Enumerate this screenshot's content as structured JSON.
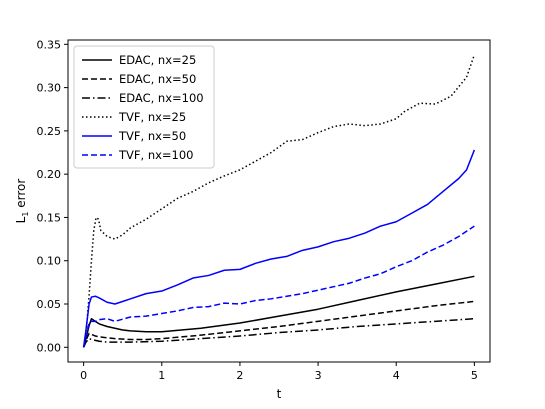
{
  "chart_data": {
    "type": "line",
    "xlabel": "t",
    "ylabel": "L1 error",
    "ylabel_main": "L",
    "ylabel_sub": "1",
    "ylabel_rest": " error",
    "xlim": [
      -0.2,
      5.2
    ],
    "ylim": [
      -0.017,
      0.355
    ],
    "xticks": [
      0,
      1,
      2,
      3,
      4,
      5
    ],
    "yticks": [
      0.0,
      0.05,
      0.1,
      0.15,
      0.2,
      0.25,
      0.3,
      0.35
    ],
    "xtick_labels": [
      "0",
      "1",
      "2",
      "3",
      "4",
      "5"
    ],
    "ytick_labels": [
      "0.00",
      "0.05",
      "0.10",
      "0.15",
      "0.20",
      "0.25",
      "0.30",
      "0.35"
    ],
    "legend_position": "top-left",
    "grid": false,
    "series": [
      {
        "name": "EDAC, nx=25",
        "color": "#000000",
        "dash": "solid",
        "x": [
          0,
          0.03,
          0.07,
          0.1,
          0.15,
          0.2,
          0.3,
          0.4,
          0.5,
          0.6,
          0.8,
          1.0,
          1.5,
          2.0,
          2.5,
          3.0,
          3.5,
          4.0,
          4.5,
          5.0
        ],
        "y": [
          0.0,
          0.01,
          0.025,
          0.033,
          0.03,
          0.027,
          0.024,
          0.022,
          0.02,
          0.019,
          0.018,
          0.018,
          0.022,
          0.028,
          0.036,
          0.044,
          0.054,
          0.064,
          0.073,
          0.082
        ]
      },
      {
        "name": "EDAC, nx=50",
        "color": "#000000",
        "dash": "dashed",
        "x": [
          0,
          0.03,
          0.07,
          0.1,
          0.15,
          0.2,
          0.3,
          0.4,
          0.6,
          0.8,
          1.0,
          1.5,
          2.0,
          2.5,
          3.0,
          3.5,
          4.0,
          4.5,
          5.0
        ],
        "y": [
          0.0,
          0.008,
          0.016,
          0.015,
          0.013,
          0.012,
          0.011,
          0.01,
          0.009,
          0.009,
          0.01,
          0.014,
          0.019,
          0.024,
          0.03,
          0.036,
          0.042,
          0.048,
          0.053
        ]
      },
      {
        "name": "EDAC, nx=100",
        "color": "#000000",
        "dash": "dashdot",
        "x": [
          0,
          0.03,
          0.07,
          0.1,
          0.15,
          0.2,
          0.3,
          0.4,
          0.6,
          1.0,
          1.5,
          2.0,
          2.5,
          3.0,
          3.5,
          4.0,
          4.5,
          5.0
        ],
        "y": [
          0.0,
          0.006,
          0.01,
          0.009,
          0.008,
          0.007,
          0.006,
          0.006,
          0.006,
          0.007,
          0.01,
          0.013,
          0.017,
          0.02,
          0.024,
          0.027,
          0.03,
          0.033
        ]
      },
      {
        "name": "TVF, nx=25",
        "color": "#000000",
        "dash": "dotted",
        "x": [
          0,
          0.03,
          0.07,
          0.1,
          0.13,
          0.16,
          0.19,
          0.22,
          0.3,
          0.4,
          0.5,
          0.6,
          0.8,
          1.0,
          1.2,
          1.4,
          1.6,
          1.8,
          2.0,
          2.2,
          2.4,
          2.6,
          2.8,
          3.0,
          3.2,
          3.4,
          3.6,
          3.8,
          4.0,
          4.1,
          4.3,
          4.5,
          4.7,
          4.9,
          5.0
        ],
        "y": [
          0.0,
          0.015,
          0.06,
          0.1,
          0.135,
          0.15,
          0.148,
          0.135,
          0.128,
          0.125,
          0.13,
          0.138,
          0.148,
          0.16,
          0.172,
          0.18,
          0.19,
          0.198,
          0.205,
          0.215,
          0.225,
          0.238,
          0.24,
          0.248,
          0.255,
          0.258,
          0.256,
          0.258,
          0.264,
          0.272,
          0.282,
          0.281,
          0.29,
          0.312,
          0.338
        ]
      },
      {
        "name": "TVF, nx=50",
        "color": "#0000ff",
        "dash": "solid",
        "x": [
          0,
          0.03,
          0.07,
          0.1,
          0.15,
          0.2,
          0.3,
          0.4,
          0.6,
          0.8,
          1.0,
          1.2,
          1.4,
          1.6,
          1.8,
          2.0,
          2.2,
          2.4,
          2.6,
          2.8,
          3.0,
          3.2,
          3.4,
          3.6,
          3.8,
          4.0,
          4.2,
          4.4,
          4.6,
          4.8,
          4.9,
          5.0
        ],
        "y": [
          0.0,
          0.02,
          0.05,
          0.058,
          0.059,
          0.057,
          0.052,
          0.05,
          0.056,
          0.062,
          0.065,
          0.072,
          0.08,
          0.083,
          0.089,
          0.09,
          0.097,
          0.102,
          0.105,
          0.112,
          0.116,
          0.122,
          0.126,
          0.132,
          0.14,
          0.145,
          0.155,
          0.165,
          0.18,
          0.195,
          0.205,
          0.228
        ]
      },
      {
        "name": "TVF, nx=100",
        "color": "#0000ff",
        "dash": "dashed",
        "x": [
          0,
          0.03,
          0.07,
          0.1,
          0.15,
          0.2,
          0.3,
          0.4,
          0.6,
          0.8,
          1.0,
          1.2,
          1.4,
          1.6,
          1.8,
          2.0,
          2.2,
          2.4,
          2.6,
          2.8,
          3.0,
          3.2,
          3.4,
          3.6,
          3.8,
          4.0,
          4.2,
          4.4,
          4.6,
          4.8,
          5.0
        ],
        "y": [
          0.0,
          0.012,
          0.028,
          0.03,
          0.03,
          0.032,
          0.033,
          0.03,
          0.035,
          0.036,
          0.039,
          0.042,
          0.046,
          0.047,
          0.051,
          0.05,
          0.054,
          0.056,
          0.059,
          0.062,
          0.066,
          0.07,
          0.074,
          0.08,
          0.085,
          0.093,
          0.1,
          0.11,
          0.118,
          0.128,
          0.14
        ]
      }
    ]
  }
}
